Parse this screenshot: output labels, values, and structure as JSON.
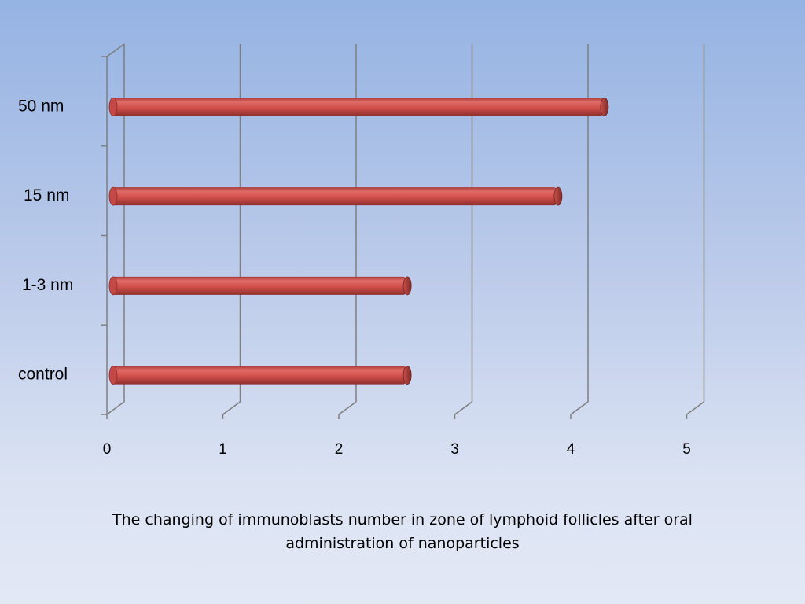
{
  "chart_data": {
    "type": "bar",
    "orientation": "horizontal",
    "categories": [
      "control",
      "1-3 nm",
      "15 nm",
      "50 nm"
    ],
    "values": [
      2.55,
      2.55,
      3.85,
      4.25
    ],
    "xlim": [
      0,
      5
    ],
    "xticks": [
      "0",
      "1",
      "2",
      "3",
      "4",
      "5"
    ],
    "grid": true,
    "bar_color": "#d9534f",
    "caption_lines": [
      "The changing of immunoblasts  number in zone of lymphoid follicles after oral",
      "administration of nanoparticles"
    ]
  }
}
